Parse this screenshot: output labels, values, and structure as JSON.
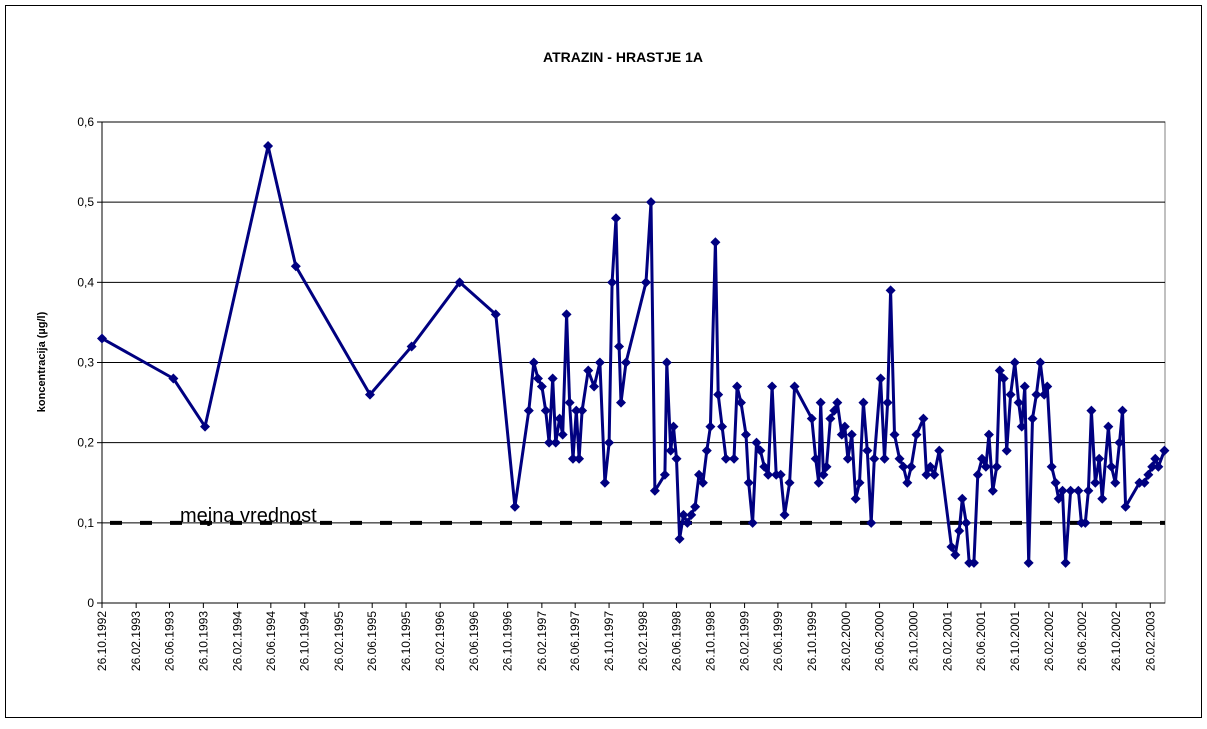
{
  "chart_data": {
    "type": "line",
    "title": "ATRAZIN - HRASTJE 1A",
    "ylabel": "koncentracija (µg/l)",
    "color": "#000080",
    "grid": true,
    "marker": "diamond",
    "threshold": {
      "label": "mejna vrednost",
      "value": 0.1,
      "color": "#000000"
    },
    "xlim": [
      "26.10.1992",
      "20.04.2003"
    ],
    "xticks": [
      "26.10.1992",
      "26.02.1993",
      "26.06.1993",
      "26.10.1993",
      "26.02.1994",
      "26.06.1994",
      "26.10.1994",
      "26.02.1995",
      "26.06.1995",
      "26.10.1995",
      "26.02.1996",
      "26.06.1996",
      "26.10.1996",
      "26.02.1997",
      "26.06.1997",
      "26.10.1997",
      "26.02.1998",
      "26.06.1998",
      "26.10.1998",
      "26.02.1999",
      "26.06.1999",
      "26.10.1999",
      "26.02.2000",
      "26.06.2000",
      "26.10.2000",
      "26.02.2001",
      "26.06.2001",
      "26.10.2001",
      "26.02.2002",
      "26.06.2002",
      "26.10.2002",
      "26.02.2003"
    ],
    "ylim": [
      0,
      0.6
    ],
    "yticks": [
      0,
      {
        "value": 0.1,
        "label": "0,1"
      },
      {
        "value": 0.2,
        "label": "0,2"
      },
      {
        "value": 0.3,
        "label": "0,3"
      },
      {
        "value": 0.4,
        "label": "0,4"
      },
      {
        "value": 0.5,
        "label": "0,5"
      },
      {
        "value": 0.6,
        "label": "0,6"
      }
    ],
    "x": [
      "26.10.1992",
      "10.07.1993",
      "01.11.1993",
      "16.06.1994",
      "24.09.1994",
      "18.06.1995",
      "15.11.1995",
      "06.05.1996",
      "13.09.1996",
      "21.11.1996",
      "10.01.1997",
      "28.01.1997",
      "12.02.1997",
      "26.02.1997",
      "12.03.1997",
      "24.03.1997",
      "06.04.1997",
      "17.04.1997",
      "01.05.1997",
      "12.05.1997",
      "26.05.1997",
      "06.06.1997",
      "18.06.1997",
      "30.06.1997",
      "10.07.1997",
      "21.07.1997",
      "12.08.1997",
      "02.09.1997",
      "23.09.1997",
      "11.10.1997",
      "26.10.1997",
      "06.11.1997",
      "20.11.1997",
      "01.12.1997",
      "08.12.1997",
      "26.12.1997",
      "08.03.1998",
      "26.03.1998",
      "09.04.1998",
      "15.05.1998",
      "22.05.1998",
      "05.06.1998",
      "15.06.1998",
      "26.06.1998",
      "07.07.1998",
      "21.07.1998",
      "04.08.1998",
      "18.08.1998",
      "01.09.1998",
      "15.09.1998",
      "29.09.1998",
      "13.10.1998",
      "26.10.1998",
      "13.11.1998",
      "23.11.1998",
      "07.12.1998",
      "21.12.1998",
      "19.01.1999",
      "30.01.1999",
      "13.02.1999",
      "03.03.1999",
      "13.03.1999",
      "27.03.1999",
      "10.04.1999",
      "24.04.1999",
      "08.05.1999",
      "22.05.1999",
      "05.06.1999",
      "20.06.1999",
      "06.07.1999",
      "20.07.1999",
      "07.08.1999",
      "25.08.1999",
      "26.10.1999",
      "09.11.1999",
      "20.11.1999",
      "27.11.1999",
      "07.12.1999",
      "18.12.1999",
      "01.01.2000",
      "15.01.2000",
      "26.01.2000",
      "11.02.2000",
      "22.02.2000",
      "04.03.2000",
      "18.03.2000",
      "01.04.2000",
      "15.04.2000",
      "29.04.2000",
      "13.05.2000",
      "27.05.2000",
      "07.06.2000",
      "30.06.2000",
      "14.07.2000",
      "25.07.2000",
      "05.08.2000",
      "19.08.2000",
      "06.09.2000",
      "20.09.2000",
      "04.10.2000",
      "18.10.2000",
      "06.11.2000",
      "01.12.2000",
      "12.12.2000",
      "26.12.2000",
      "09.01.2001",
      "27.01.2001",
      "12.03.2001",
      "26.03.2001",
      "09.04.2001",
      "20.04.2001",
      "04.05.2001",
      "15.05.2001",
      "01.06.2001",
      "15.06.2001",
      "30.06.2001",
      "14.07.2001",
      "25.07.2001",
      "08.08.2001",
      "22.08.2001",
      "02.09.2001",
      "16.09.2001",
      "27.09.2001",
      "11.10.2001",
      "26.10.2001",
      "09.11.2001",
      "20.11.2001",
      "01.12.2001",
      "15.12.2001",
      "29.12.2001",
      "12.01.2002",
      "26.01.2002",
      "09.02.2002",
      "20.02.2002",
      "08.03.2002",
      "22.03.2002",
      "02.04.2002",
      "16.04.2002",
      "27.04.2002",
      "15.05.2002",
      "12.06.2002",
      "23.06.2002",
      "07.07.2002",
      "18.07.2002",
      "29.07.2002",
      "12.08.2002",
      "26.08.2002",
      "06.09.2002",
      "28.09.2002",
      "09.10.2002",
      "23.10.2002",
      "07.11.2002",
      "18.11.2002",
      "29.11.2002",
      "18.01.2003",
      "05.02.2003",
      "19.02.2003",
      "05.03.2003",
      "16.03.2003",
      "27.03.2003",
      "18.04.2003"
    ],
    "values": [
      0.33,
      0.28,
      0.22,
      0.57,
      0.42,
      0.26,
      0.32,
      0.4,
      0.36,
      0.12,
      0.24,
      0.3,
      0.28,
      0.27,
      0.24,
      0.2,
      0.28,
      0.2,
      0.23,
      0.21,
      0.36,
      0.25,
      0.18,
      0.24,
      0.18,
      0.24,
      0.29,
      0.27,
      0.3,
      0.15,
      0.2,
      0.4,
      0.48,
      0.32,
      0.25,
      0.3,
      0.4,
      0.5,
      0.14,
      0.16,
      0.3,
      0.19,
      0.22,
      0.18,
      0.08,
      0.11,
      0.1,
      0.11,
      0.12,
      0.16,
      0.15,
      0.19,
      0.22,
      0.45,
      0.26,
      0.22,
      0.18,
      0.18,
      0.27,
      0.25,
      0.21,
      0.15,
      0.1,
      0.2,
      0.19,
      0.17,
      0.16,
      0.27,
      0.16,
      0.16,
      0.11,
      0.15,
      0.27,
      0.23,
      0.18,
      0.15,
      0.25,
      0.16,
      0.17,
      0.23,
      0.24,
      0.25,
      0.21,
      0.22,
      0.18,
      0.21,
      0.13,
      0.15,
      0.25,
      0.19,
      0.1,
      0.18,
      0.28,
      0.18,
      0.25,
      0.39,
      0.21,
      0.18,
      0.17,
      0.15,
      0.17,
      0.21,
      0.23,
      0.16,
      0.17,
      0.16,
      0.19,
      0.07,
      0.06,
      0.09,
      0.13,
      0.1,
      0.05,
      0.05,
      0.16,
      0.18,
      0.17,
      0.21,
      0.14,
      0.17,
      0.29,
      0.28,
      0.19,
      0.26,
      0.3,
      0.25,
      0.22,
      0.27,
      0.05,
      0.23,
      0.26,
      0.3,
      0.26,
      0.27,
      0.17,
      0.15,
      0.13,
      0.14,
      0.05,
      0.14,
      0.14,
      0.1,
      0.1,
      0.14,
      0.24,
      0.15,
      0.18,
      0.13,
      0.22,
      0.17,
      0.15,
      0.2,
      0.24,
      0.12,
      0.15,
      0.15,
      0.16,
      0.17,
      0.18,
      0.17,
      0.19
    ]
  }
}
